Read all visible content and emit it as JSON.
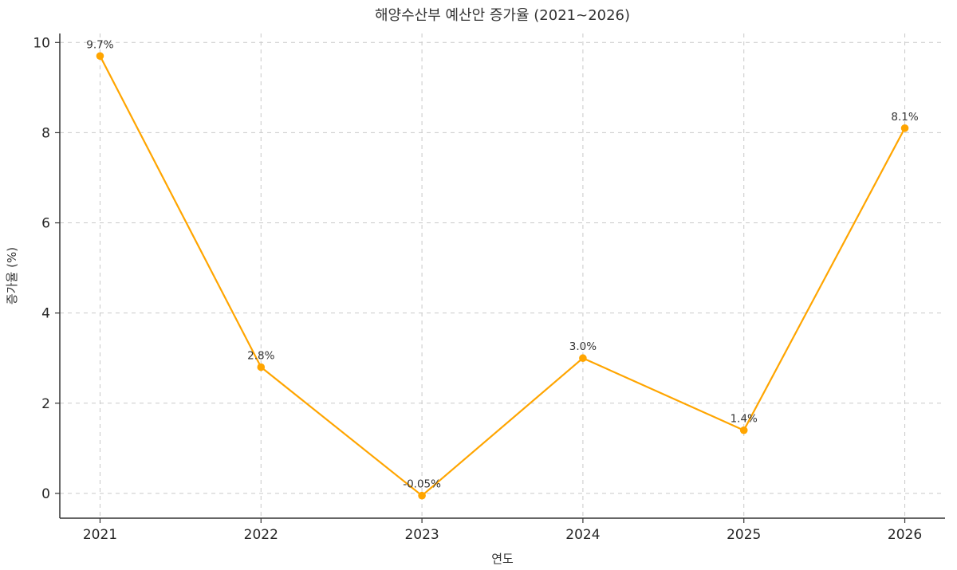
{
  "chart_data": {
    "type": "line",
    "title": "해양수산부 예산안 증가율 (2021~2026)",
    "xlabel": "연도",
    "ylabel": "증가율 (%)",
    "categories": [
      "2021",
      "2022",
      "2023",
      "2024",
      "2025",
      "2026"
    ],
    "values": [
      9.7,
      2.8,
      -0.05,
      3.0,
      1.4,
      8.1
    ],
    "data_labels": [
      "9.7%",
      "2.8%",
      "-0.05%",
      "3.0%",
      "1.4%",
      "8.1%"
    ],
    "y_ticks": [
      0,
      2,
      4,
      6,
      8,
      10
    ],
    "ylim": [
      -0.55,
      10.2
    ],
    "grid": "dashed",
    "legend": "none",
    "line_color": "#FFA500",
    "marker_color": "#FFA500",
    "grid_color": "#c9c9c9",
    "spine_color": "#333333"
  }
}
